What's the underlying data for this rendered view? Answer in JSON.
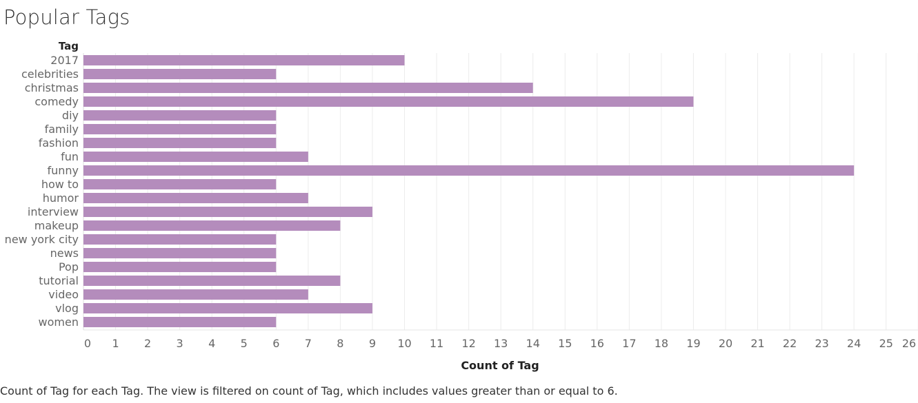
{
  "title": "Popular Tags",
  "caption": "Count of Tag for each Tag. The view is filtered on count of Tag, which includes values greater than or equal to 6.",
  "colors": {
    "bar": "#b48cbc",
    "grid": "#ececec",
    "axis_text": "#666666",
    "header_text": "#222222"
  },
  "chart_data": {
    "type": "bar",
    "orientation": "horizontal",
    "row_header": "Tag",
    "categories": [
      "2017",
      "celebrities",
      "christmas",
      "comedy",
      "diy",
      "family",
      "fashion",
      "fun",
      "funny",
      "how to",
      "humor",
      "interview",
      "makeup",
      "new york city",
      "news",
      "Pop",
      "tutorial",
      "video",
      "vlog",
      "women"
    ],
    "values": [
      10,
      6,
      14,
      19,
      6,
      6,
      6,
      7,
      24,
      6,
      7,
      9,
      8,
      6,
      6,
      6,
      8,
      7,
      9,
      6
    ],
    "xlabel": "Count of Tag",
    "xlim": [
      0,
      26
    ],
    "xticks": [
      "0",
      "1",
      "2",
      "3",
      "4",
      "5",
      "6",
      "7",
      "8",
      "9",
      "10",
      "11",
      "12",
      "13",
      "14",
      "15",
      "16",
      "17",
      "18",
      "19",
      "20",
      "21",
      "22",
      "23",
      "24",
      "25",
      "26"
    ],
    "grid": true
  }
}
